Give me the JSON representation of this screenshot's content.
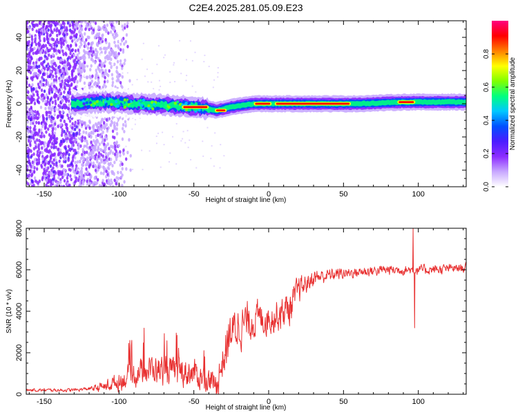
{
  "title": "C2E4.2025.281.05.09.E23",
  "colors": {
    "frame": "#000000",
    "snr_line": "#e83030",
    "background": "#ffffff"
  },
  "chart_data": [
    {
      "type": "heatmap",
      "name": "spectrogram",
      "xlabel": "Height of straight line (km)",
      "ylabel": "Frequency (Hz)",
      "xlim": [
        -162,
        132
      ],
      "ylim": [
        -50,
        50
      ],
      "xticks": [
        -150,
        -100,
        -50,
        0,
        50,
        100
      ],
      "yticks": [
        -40,
        -20,
        0,
        20,
        40
      ],
      "colorbar": {
        "label": "Normalized spectral amplitude",
        "range": [
          0,
          1
        ],
        "ticks": [
          "0.0",
          "0.2",
          "0.4",
          "0.6",
          "0.8"
        ],
        "stops": [
          "#ffffff",
          "#c8a8ff",
          "#8c2cff",
          "#4b1cff",
          "#0050ff",
          "#00c8ff",
          "#00ff80",
          "#80ff00",
          "#ffff00",
          "#ff8000",
          "#ff0000",
          "#ff0080"
        ]
      },
      "track_center_hz": [
        {
          "x": -162,
          "y": 0
        },
        {
          "x": -130,
          "y": 0
        },
        {
          "x": -110,
          "y": 1
        },
        {
          "x": -90,
          "y": 0
        },
        {
          "x": -70,
          "y": -1
        },
        {
          "x": -50,
          "y": -2
        },
        {
          "x": -40,
          "y": -3
        },
        {
          "x": -35,
          "y": -4
        },
        {
          "x": -25,
          "y": -2
        },
        {
          "x": -10,
          "y": 0
        },
        {
          "x": 20,
          "y": 0
        },
        {
          "x": 60,
          "y": 0
        },
        {
          "x": 90,
          "y": 1
        },
        {
          "x": 100,
          "y": 1
        },
        {
          "x": 132,
          "y": 1
        }
      ],
      "hot_segments": [
        {
          "x0": -58,
          "x1": -40,
          "y": -2
        },
        {
          "x0": -36,
          "x1": -28,
          "y": -4
        },
        {
          "x0": -10,
          "x1": 2,
          "y": 0
        },
        {
          "x0": 4,
          "x1": 55,
          "y": 0
        },
        {
          "x0": 86,
          "x1": 98,
          "y": 1
        }
      ]
    },
    {
      "type": "line",
      "name": "snr",
      "xlabel": "Height of straight line (km)",
      "ylabel": "SNR (10 * v/v)",
      "xlim": [
        -162,
        132
      ],
      "ylim": [
        0,
        8000
      ],
      "xticks": [
        -150,
        -100,
        -50,
        0,
        50,
        100
      ],
      "yticks": [
        0,
        2000,
        4000,
        6000,
        8000
      ],
      "trend": [
        {
          "x": -162,
          "y": 200
        },
        {
          "x": -130,
          "y": 200
        },
        {
          "x": -115,
          "y": 300
        },
        {
          "x": -100,
          "y": 600
        },
        {
          "x": -90,
          "y": 1000
        },
        {
          "x": -80,
          "y": 1200
        },
        {
          "x": -70,
          "y": 1200
        },
        {
          "x": -60,
          "y": 1100
        },
        {
          "x": -50,
          "y": 1000
        },
        {
          "x": -40,
          "y": 700
        },
        {
          "x": -35,
          "y": 400
        },
        {
          "x": -30,
          "y": 1800
        },
        {
          "x": -25,
          "y": 3000
        },
        {
          "x": -20,
          "y": 3300
        },
        {
          "x": -10,
          "y": 3600
        },
        {
          "x": 0,
          "y": 3700
        },
        {
          "x": 10,
          "y": 4000
        },
        {
          "x": 15,
          "y": 4200
        },
        {
          "x": 20,
          "y": 5000
        },
        {
          "x": 30,
          "y": 5600
        },
        {
          "x": 45,
          "y": 5800
        },
        {
          "x": 60,
          "y": 5900
        },
        {
          "x": 80,
          "y": 6000
        },
        {
          "x": 95,
          "y": 6000
        },
        {
          "x": 110,
          "y": 6000
        },
        {
          "x": 132,
          "y": 6100
        }
      ],
      "noise": [
        {
          "x": -162,
          "y": 80
        },
        {
          "x": -120,
          "y": 100
        },
        {
          "x": -105,
          "y": 400
        },
        {
          "x": -90,
          "y": 700
        },
        {
          "x": -70,
          "y": 800
        },
        {
          "x": -50,
          "y": 800
        },
        {
          "x": -38,
          "y": 600
        },
        {
          "x": -30,
          "y": 1200
        },
        {
          "x": -20,
          "y": 1200
        },
        {
          "x": 0,
          "y": 900
        },
        {
          "x": 15,
          "y": 1000
        },
        {
          "x": 25,
          "y": 500
        },
        {
          "x": 50,
          "y": 300
        },
        {
          "x": 132,
          "y": 250
        }
      ],
      "spikes": [
        {
          "x": 96.5,
          "y": 8000
        },
        {
          "x": 97.5,
          "y": 3200
        }
      ]
    }
  ]
}
